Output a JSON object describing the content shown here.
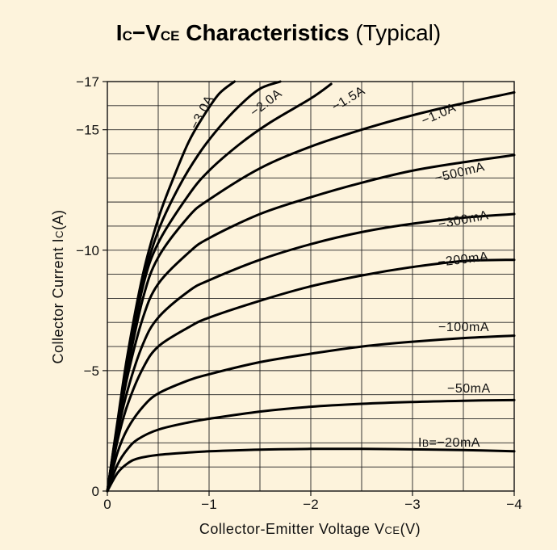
{
  "chart_data": {
    "type": "line",
    "title": {
      "main_a": "I",
      "main_sub_a": "C",
      "dash": "−",
      "main_b": "V",
      "main_sub_b": "CE",
      "main_c": " Characteristics",
      "suffix": " (Typical)"
    },
    "xlabel": {
      "text": "Collector-Emitter Voltage V",
      "sub": "CE",
      "unit": "(V)"
    },
    "ylabel": {
      "text": "Collector Current I",
      "sub": "C",
      "unit": "(A)"
    },
    "xlim": [
      0,
      -4
    ],
    "ylim": [
      0,
      -17
    ],
    "x_ticks": [
      {
        "value": 0,
        "label": "0"
      },
      {
        "value": -1,
        "label": "−1"
      },
      {
        "value": -2,
        "label": "−2"
      },
      {
        "value": -3,
        "label": "−3"
      },
      {
        "value": -4,
        "label": "−4"
      }
    ],
    "y_ticks": [
      {
        "value": 0,
        "label": "0"
      },
      {
        "value": -5,
        "label": "−5"
      },
      {
        "value": -10,
        "label": "−10"
      },
      {
        "value": -15,
        "label": "−15"
      },
      {
        "value": -17,
        "label": "−17"
      }
    ],
    "grid": true,
    "series": [
      {
        "name": "I",
        "label": "IB=−20mA",
        "label_prefix": "I",
        "label_sub": "B",
        "label_rest": "=−20mA",
        "x": [
          0,
          -0.1,
          -0.2,
          -0.3,
          -0.5,
          -0.8,
          -1.0,
          -1.5,
          -2.0,
          -2.5,
          -3.0,
          -3.5,
          -4.0
        ],
        "y": [
          0,
          -0.75,
          -1.15,
          -1.35,
          -1.5,
          -1.6,
          -1.65,
          -1.72,
          -1.75,
          -1.75,
          -1.73,
          -1.7,
          -1.65
        ]
      },
      {
        "name": "-50mA",
        "label": "−50mA",
        "x": [
          0,
          -0.1,
          -0.2,
          -0.3,
          -0.5,
          -0.8,
          -1.0,
          -1.5,
          -2.0,
          -2.5,
          -3.0,
          -3.5,
          -4.0
        ],
        "y": [
          0,
          -1.1,
          -1.75,
          -2.15,
          -2.55,
          -2.85,
          -3.0,
          -3.3,
          -3.5,
          -3.62,
          -3.7,
          -3.75,
          -3.78
        ]
      },
      {
        "name": "-100mA",
        "label": "−100mA",
        "x": [
          0,
          -0.1,
          -0.2,
          -0.35,
          -0.5,
          -0.8,
          -1.0,
          -1.5,
          -2.0,
          -2.5,
          -3.0,
          -3.5,
          -4.0
        ],
        "y": [
          0,
          -1.6,
          -2.6,
          -3.5,
          -4.05,
          -4.6,
          -4.85,
          -5.35,
          -5.7,
          -6.0,
          -6.2,
          -6.35,
          -6.45
        ]
      },
      {
        "name": "-200mA",
        "label": "−200mA",
        "x": [
          0,
          -0.1,
          -0.2,
          -0.35,
          -0.5,
          -0.8,
          -1.0,
          -1.5,
          -2.0,
          -2.5,
          -3.0,
          -3.5,
          -4.0
        ],
        "y": [
          0,
          -2.1,
          -3.6,
          -5.1,
          -6.0,
          -6.8,
          -7.2,
          -7.9,
          -8.5,
          -8.95,
          -9.3,
          -9.55,
          -9.6
        ]
      },
      {
        "name": "-300mA",
        "label": "−300mA",
        "x": [
          0,
          -0.1,
          -0.2,
          -0.35,
          -0.5,
          -0.8,
          -1.0,
          -1.5,
          -2.0,
          -2.5,
          -3.0,
          -3.5,
          -4.0
        ],
        "y": [
          0,
          -2.4,
          -4.2,
          -6.1,
          -7.2,
          -8.3,
          -8.75,
          -9.6,
          -10.25,
          -10.75,
          -11.1,
          -11.35,
          -11.5
        ]
      },
      {
        "name": "-500mA",
        "label": "−500mA",
        "x": [
          0,
          -0.1,
          -0.2,
          -0.35,
          -0.5,
          -0.8,
          -1.0,
          -1.5,
          -2.0,
          -2.5,
          -3.0,
          -3.5,
          -4.0
        ],
        "y": [
          0,
          -2.6,
          -4.8,
          -7.2,
          -8.6,
          -9.9,
          -10.5,
          -11.5,
          -12.2,
          -12.8,
          -13.3,
          -13.65,
          -13.95
        ]
      },
      {
        "name": "-1.0A",
        "label": "−1.0A",
        "x": [
          0,
          -0.1,
          -0.2,
          -0.35,
          -0.5,
          -0.8,
          -1.0,
          -1.5,
          -2.0,
          -2.5,
          -3.0,
          -3.5,
          -4.0
        ],
        "y": [
          0,
          -2.7,
          -5.1,
          -8.0,
          -9.7,
          -11.4,
          -12.1,
          -13.4,
          -14.3,
          -15.0,
          -15.6,
          -16.1,
          -16.55
        ]
      },
      {
        "name": "-1.5A",
        "label": "−1.5A",
        "x": [
          0,
          -0.1,
          -0.2,
          -0.35,
          -0.5,
          -0.8,
          -1.0,
          -1.3,
          -1.6,
          -2.0,
          -2.2
        ],
        "y": [
          0,
          -2.8,
          -5.3,
          -8.5,
          -10.3,
          -12.3,
          -13.3,
          -14.4,
          -15.3,
          -16.3,
          -16.9
        ]
      },
      {
        "name": "-2.0A",
        "label": "−2.0A",
        "x": [
          0,
          -0.1,
          -0.2,
          -0.35,
          -0.5,
          -0.7,
          -0.9,
          -1.1,
          -1.3,
          -1.5,
          -1.7
        ],
        "y": [
          0,
          -2.8,
          -5.5,
          -8.7,
          -10.8,
          -12.6,
          -14.0,
          -15.1,
          -16.0,
          -16.7,
          -17.0
        ]
      },
      {
        "name": "-3.0A",
        "label": "−3.0A",
        "x": [
          0,
          -0.1,
          -0.2,
          -0.35,
          -0.5,
          -0.65,
          -0.8,
          -0.95,
          -1.1,
          -1.25
        ],
        "y": [
          0,
          -2.9,
          -5.7,
          -9.0,
          -11.3,
          -13.0,
          -14.5,
          -15.6,
          -16.5,
          -17.0
        ]
      }
    ]
  }
}
